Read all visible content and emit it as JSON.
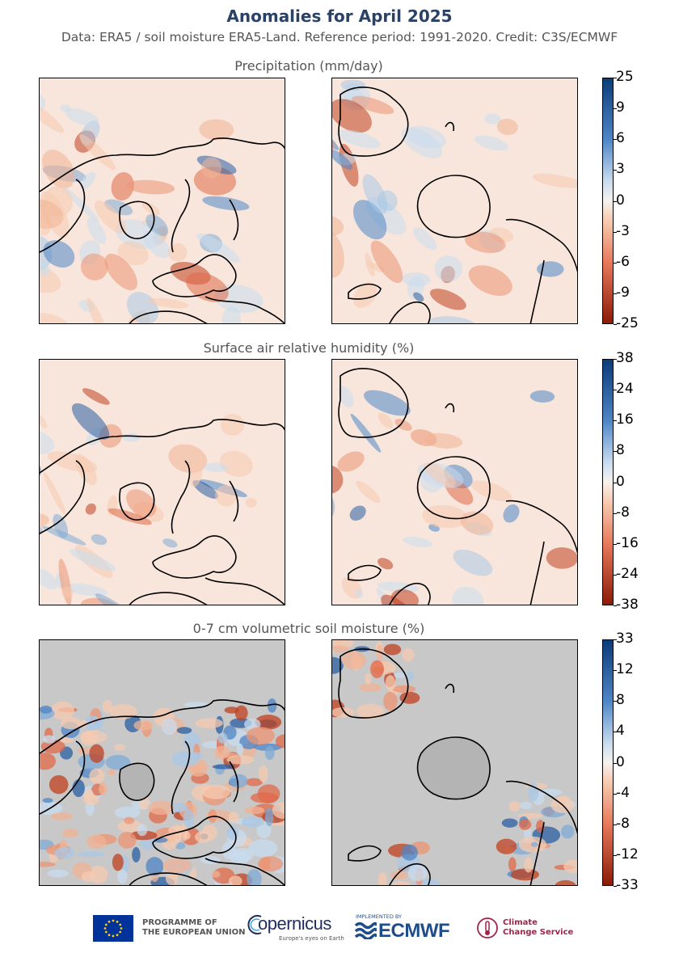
{
  "header": {
    "title": "Anomalies for April 2025",
    "subtitle": "Data: ERA5 / soil moisture ERA5-Land.  Reference period: 1991-2020.  Credit: C3S/ECMWF"
  },
  "panels": [
    {
      "name": "precipitation",
      "title": "Precipitation (mm/day)",
      "colorbar_ticks": [
        "25",
        "9",
        "6",
        "3",
        "0",
        "-3",
        "-6",
        "-9",
        "-25"
      ],
      "maps": [
        "arctic",
        "antarctic"
      ]
    },
    {
      "name": "relative-humidity",
      "title": "Surface air relative humidity (%)",
      "colorbar_ticks": [
        "38",
        "24",
        "16",
        "8",
        "0",
        "-8",
        "-16",
        "-24",
        "-38"
      ],
      "maps": [
        "arctic",
        "antarctic"
      ]
    },
    {
      "name": "soil-moisture",
      "title": "0-7 cm volumetric soil moisture (%)",
      "colorbar_ticks": [
        "33",
        "12",
        "8",
        "4",
        "0",
        "-4",
        "-8",
        "-12",
        "-33"
      ],
      "maps": [
        "arctic",
        "antarctic"
      ]
    }
  ],
  "colors": {
    "wet_dark": "#0b3c7a",
    "wet_mid": "#4f86c6",
    "wet_light": "#c8dcef",
    "neutral": "#f7f2ee",
    "dry_light": "#f6cbb0",
    "dry_mid": "#e9795b",
    "dry_dark": "#8c1a06",
    "no_data": "#c8c8c8",
    "title_color": "#2b4266"
  },
  "footer": {
    "eu_text_line1": "PROGRAMME OF",
    "eu_text_line2": "THE EUROPEAN UNION",
    "copernicus": "opernicus",
    "copernicus_tag": "Europe's eyes on Earth",
    "ecmwf_implemented": "IMPLEMENTED BY",
    "ecmwf": "ECMWF",
    "c3s_line1": "Climate",
    "c3s_line2": "Change Service"
  }
}
